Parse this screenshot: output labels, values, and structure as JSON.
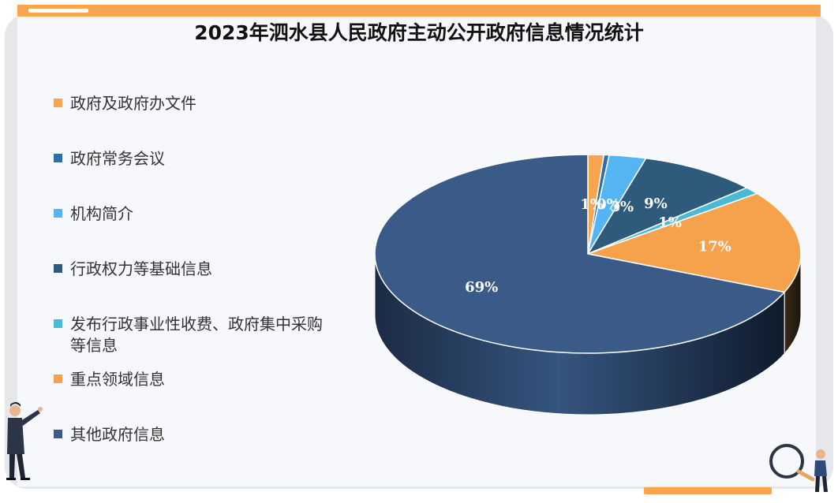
{
  "title": "2023年泗水县人民政府主动公开政府信息情况统计",
  "chart_data": {
    "type": "pie",
    "style": "3d",
    "categories": [
      "政府及政府办文件",
      "政府常务会议",
      "机构简介",
      "行政权力等基础信息",
      "发布行政事业性收费、政府集中采购等信息",
      "重点领域信息",
      "其他政府信息"
    ],
    "values": [
      1.2,
      0.4,
      2.8,
      9.0,
      1.2,
      16.7,
      68.7
    ],
    "data_labels": [
      "1%",
      "0%",
      "3%",
      "9%",
      "1%",
      "17%",
      "69%"
    ],
    "colors": [
      "#f7a64f",
      "#2e6fa7",
      "#55b5f2",
      "#2e5a7c",
      "#49b9d4",
      "#f6a24d",
      "#3a5a87"
    ],
    "legend_position": "left"
  },
  "legend": {
    "items": [
      {
        "label": "政府及政府办文件",
        "color": "#f7a64f"
      },
      {
        "label": "政府常务会议",
        "color": "#2e6fa7"
      },
      {
        "label": "机构简介",
        "color": "#55b5f2"
      },
      {
        "label": "行政权力等基础信息",
        "color": "#2e5a7c"
      },
      {
        "label": "发布行政事业性收费、政府集中采购等信息",
        "color": "#49b9d4"
      },
      {
        "label": "重点领域信息",
        "color": "#f6a24d"
      },
      {
        "label": "其他政府信息",
        "color": "#3a5a87"
      }
    ]
  }
}
